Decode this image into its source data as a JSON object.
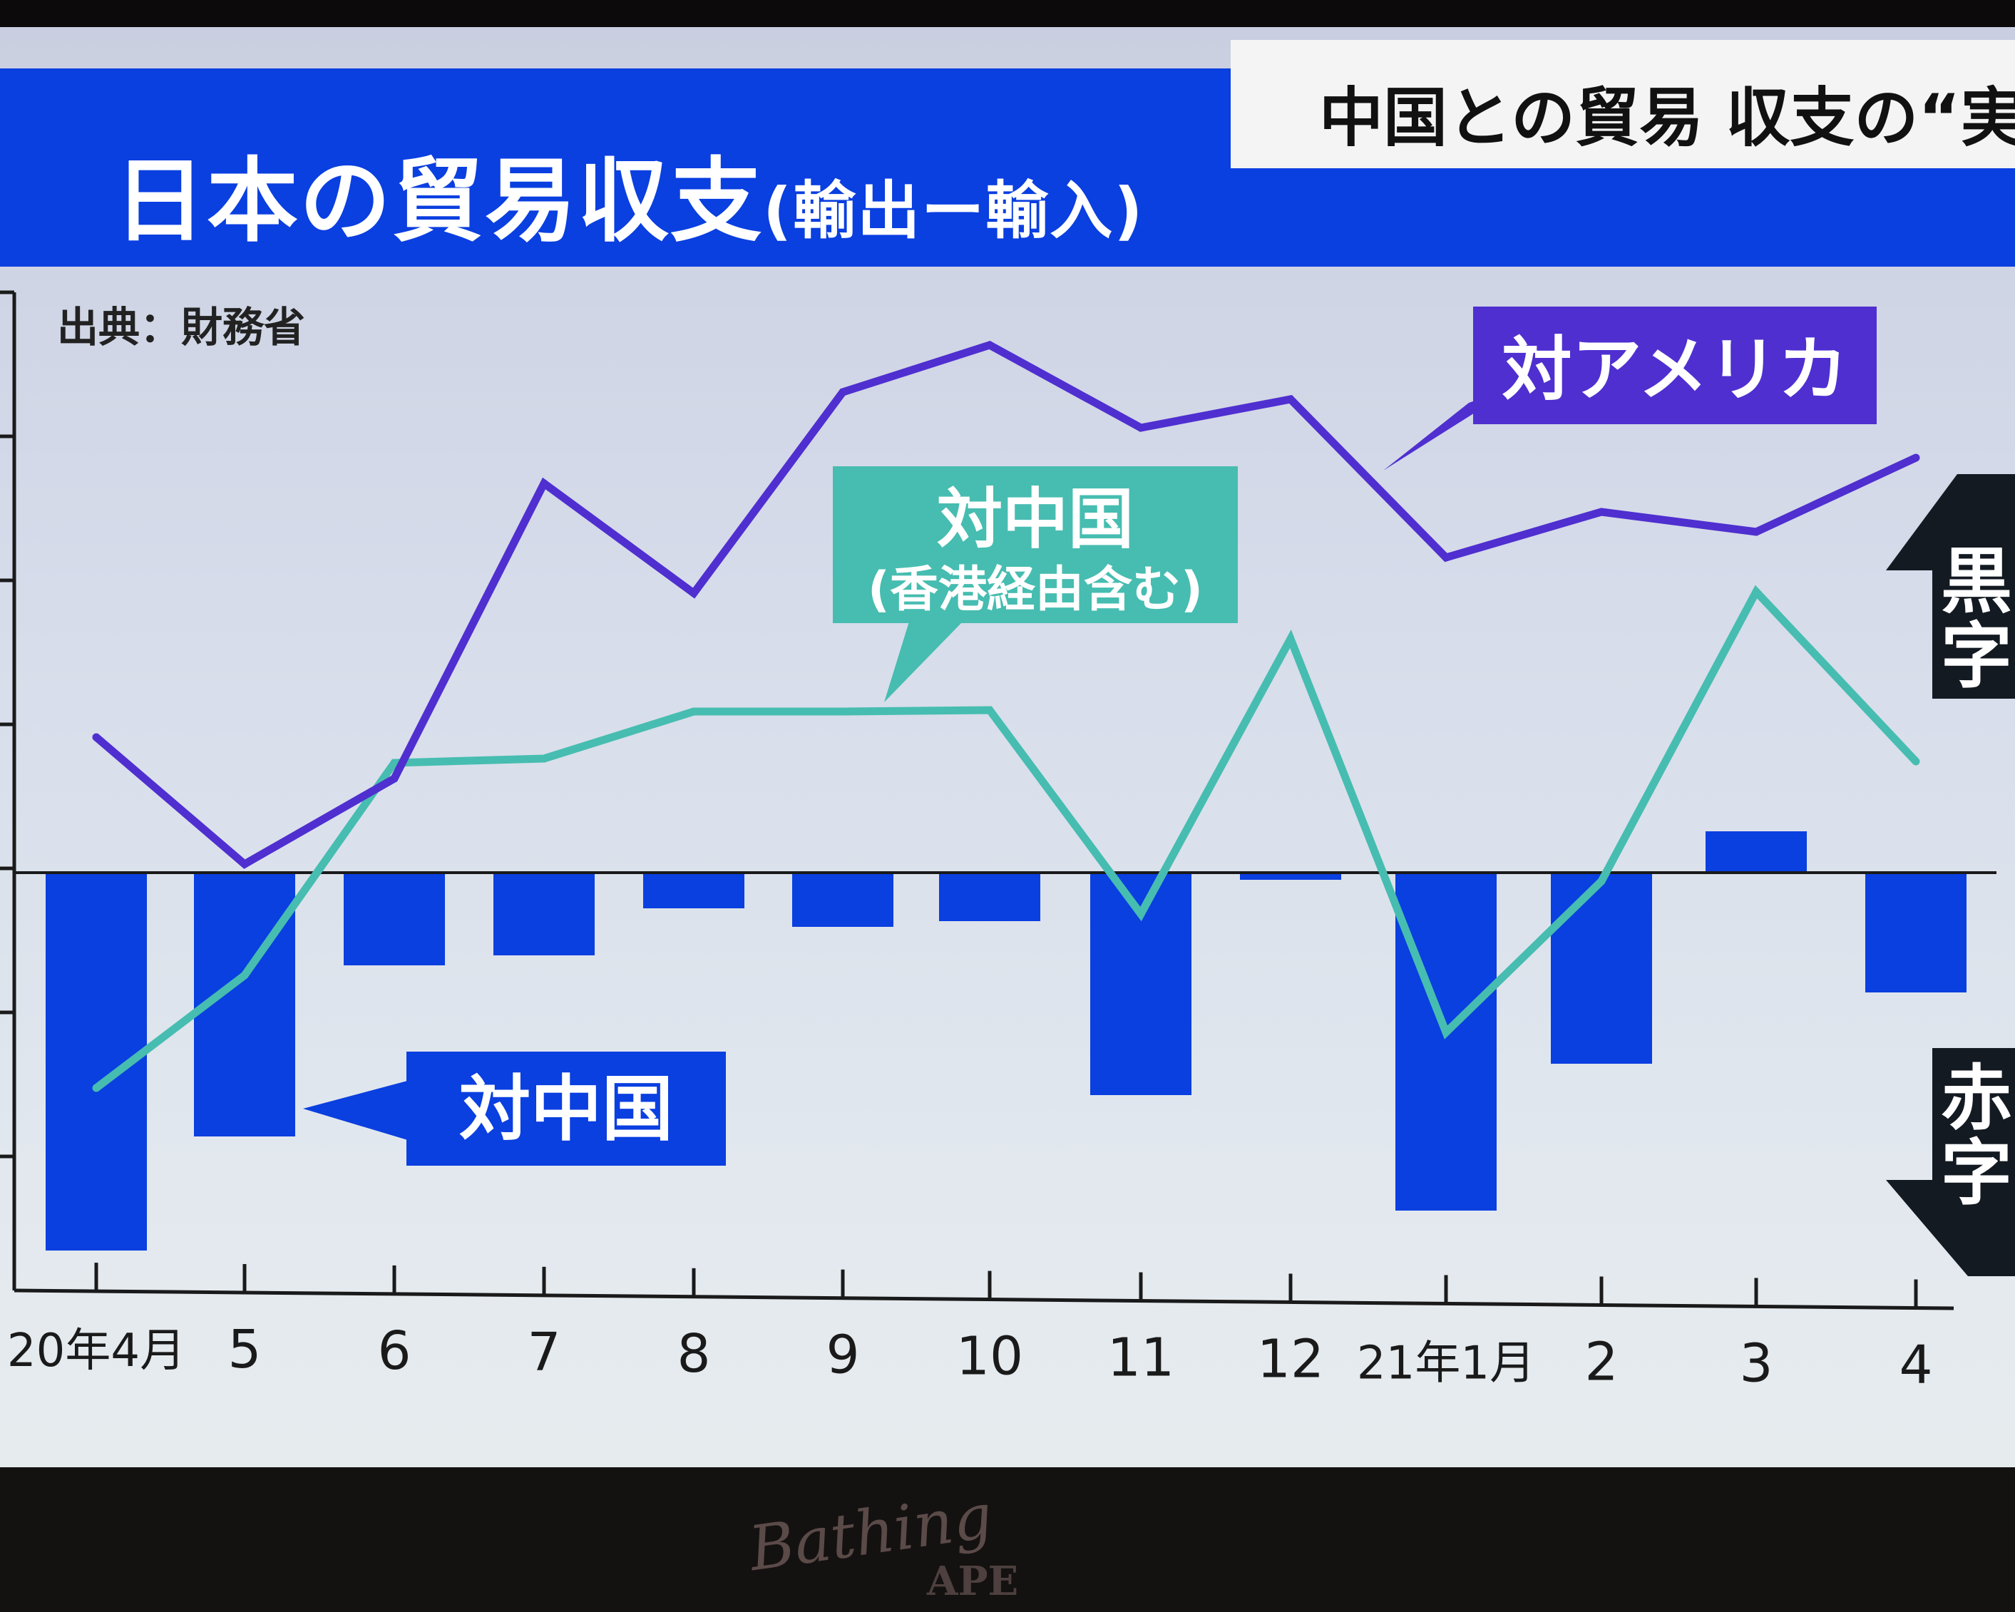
{
  "header": {
    "title": "日本の貿易収支",
    "title_sub": "(輸出ー輸入)",
    "topic": "中国との貿易 収支の“実",
    "source": "出典：財務省"
  },
  "labels": {
    "usa": "対アメリカ",
    "china_line_1": "対中国",
    "china_line_2": "(香港経由含む)",
    "china_bar": "対中国",
    "surplus": [
      "黒",
      "字"
    ],
    "deficit": [
      "赤",
      "字"
    ]
  },
  "watermark": {
    "line1": "Bathing",
    "line2": "APE"
  },
  "colors": {
    "usa": "#4f2fd0",
    "china_line": "#46bdb0",
    "china_bar": "#0a3fe0",
    "axis": "#1a1a1a",
    "arrow": "#141a22"
  },
  "chart_data": {
    "type": "bar+line",
    "title": "日本の貿易収支(輸出ー輸入)",
    "categories": [
      "20年4月",
      "5",
      "6",
      "7",
      "8",
      "9",
      "10",
      "11",
      "12",
      "21年1月",
      "2",
      "3",
      "4"
    ],
    "ylim": [
      -30,
      37
    ],
    "grid": false,
    "series": [
      {
        "name": "対中国",
        "type": "bar",
        "values": [
          -26.5,
          -18.5,
          -6.5,
          -5.8,
          -2.5,
          -3.8,
          -3.4,
          -15.6,
          -0.5,
          -23.7,
          -13.4,
          2.9,
          -8.4
        ]
      },
      {
        "name": "対アメリカ",
        "type": "line",
        "values": [
          9.5,
          0.6,
          6.6,
          27.3,
          19.6,
          33.7,
          37.0,
          31.2,
          33.2,
          22.1,
          25.3,
          23.9,
          29.1
        ]
      },
      {
        "name": "対中国(香港経由含む)",
        "type": "line",
        "values": [
          -15.1,
          -7.2,
          7.7,
          8.0,
          11.3,
          11.3,
          11.4,
          -2.9,
          16.4,
          -11.2,
          -0.6,
          19.7,
          7.8
        ]
      }
    ]
  }
}
